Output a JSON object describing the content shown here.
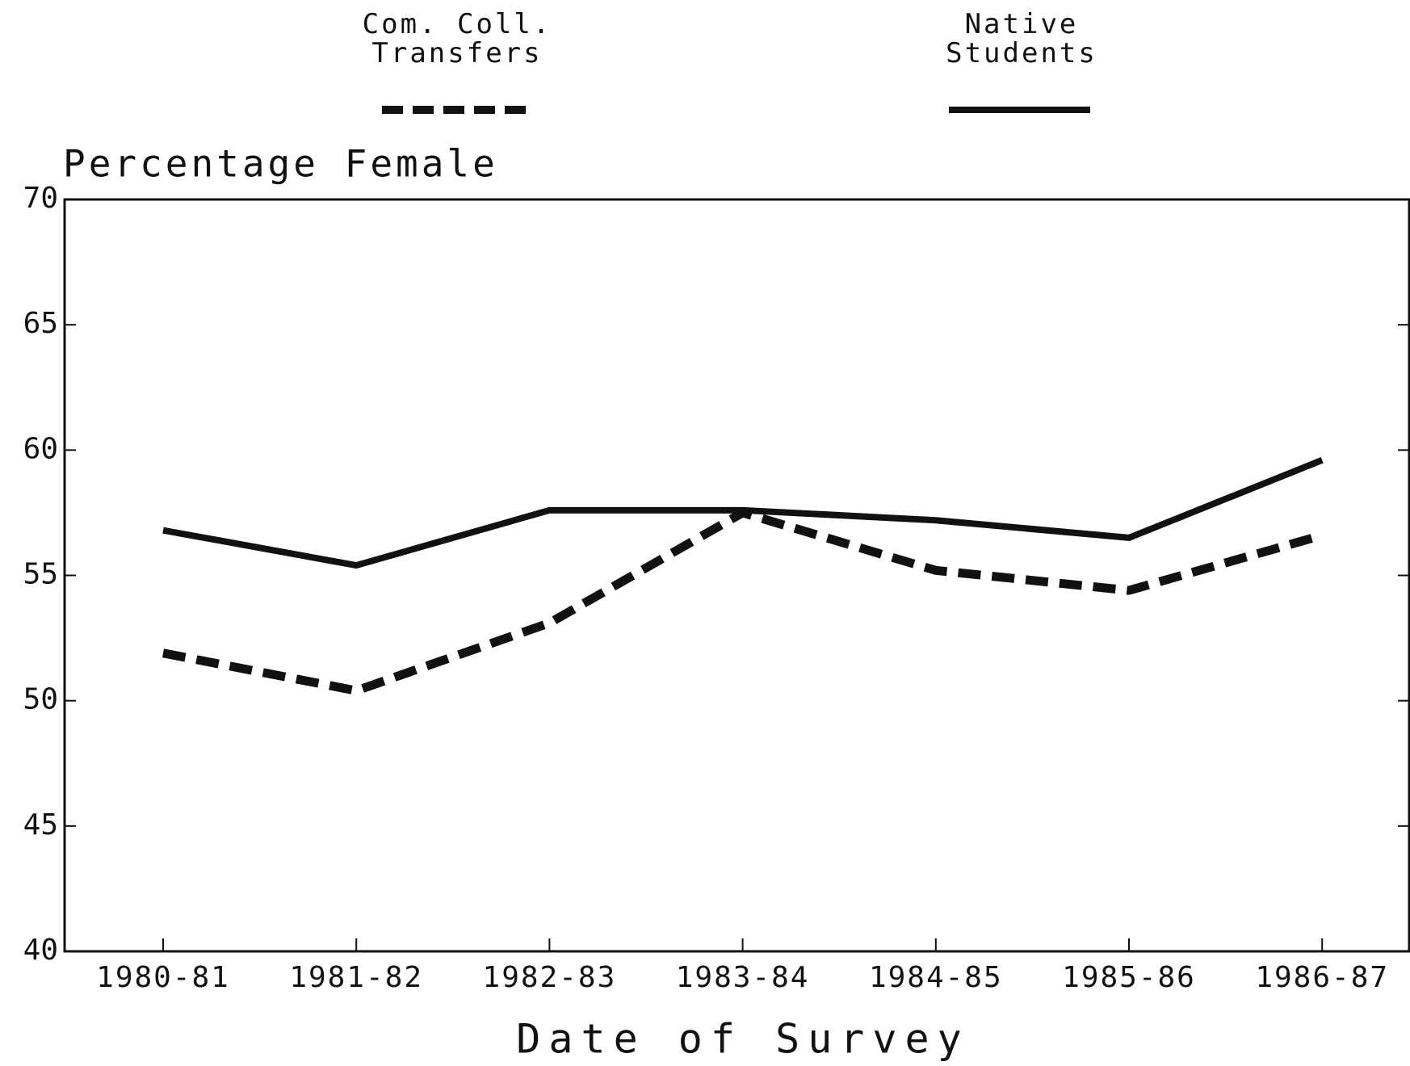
{
  "chart_data": {
    "type": "line",
    "title": "Percentage Female",
    "x_label": "Date of Survey",
    "categories": [
      "1980-81",
      "1981-82",
      "1982-83",
      "1983-84",
      "1984-85",
      "1985-86",
      "1986-87"
    ],
    "series": [
      {
        "name": "Com. Coll. Transfers",
        "color": "#111111",
        "style": "dashed",
        "values": [
          51.9,
          50.4,
          53.1,
          57.5,
          55.2,
          54.4,
          56.6
        ]
      },
      {
        "name": "Native Students",
        "color": "#111111",
        "style": "solid",
        "values": [
          56.8,
          55.4,
          57.6,
          57.6,
          57.2,
          56.5,
          59.6
        ]
      }
    ],
    "ylim": [
      40,
      70
    ],
    "yticks": [
      40,
      45,
      50,
      55,
      60,
      65,
      70
    ],
    "grid": false
  }
}
